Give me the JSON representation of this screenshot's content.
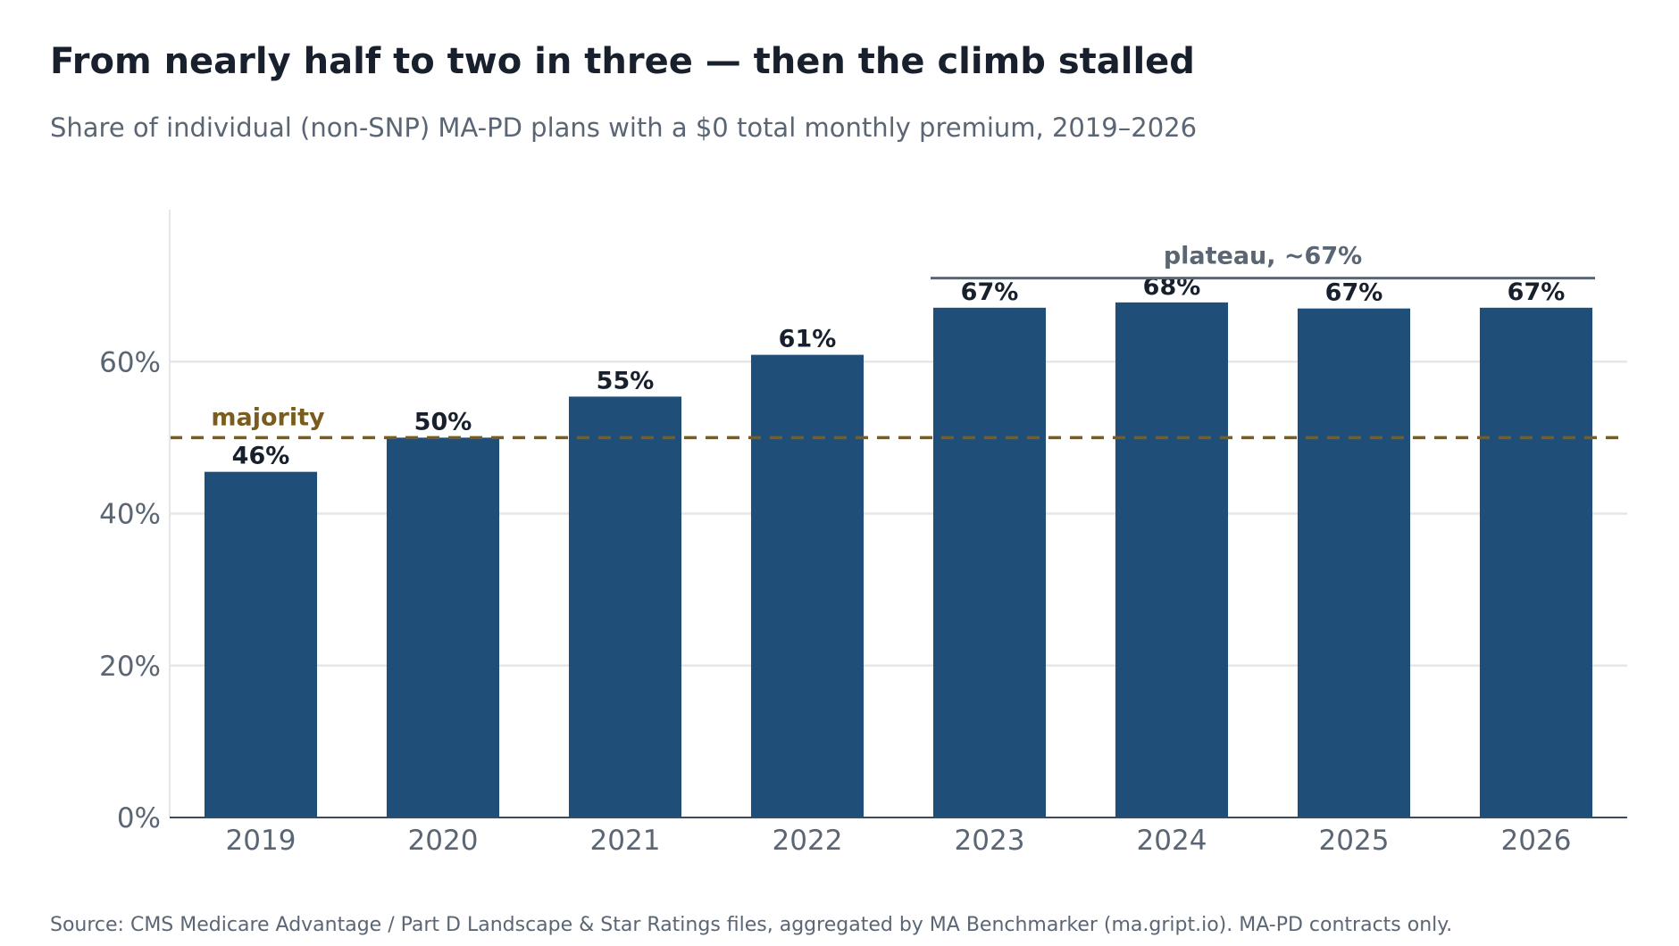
{
  "title": "From nearly half to two in three — then the climb stalled",
  "subtitle": "Share of individual (non-SNP) MA-PD plans with a $0 total monthly premium, 2019–2026",
  "source": "Source: CMS Medicare Advantage / Part D Landscape & Star Ratings files, aggregated by MA Benchmarker (ma.gript.io). MA-PD contracts only.",
  "colors": {
    "bar": "#1f4e79",
    "reference_line": "#7a5c1e",
    "plateau_bracket": "#5b6675",
    "text_dark": "#17202c",
    "text_muted": "#5b6675",
    "grid": "#e6e6e6",
    "axis": "#3d4a5a"
  },
  "chart_data": {
    "type": "bar",
    "title": "From nearly half to two in three — then the climb stalled",
    "subtitle": "Share of individual (non-SNP) MA-PD plans with a $0 total monthly premium, 2019–2026",
    "xlabel": "",
    "ylabel": "",
    "categories": [
      "2019",
      "2020",
      "2021",
      "2022",
      "2023",
      "2024",
      "2025",
      "2026"
    ],
    "values": [
      45.5,
      50.0,
      55.4,
      60.9,
      67.1,
      67.8,
      67.0,
      67.1
    ],
    "data_labels": [
      "46%",
      "50%",
      "55%",
      "61%",
      "67%",
      "68%",
      "67%",
      "67%"
    ],
    "ylim": [
      0,
      80
    ],
    "yticks": [
      0,
      20,
      40,
      60
    ],
    "ytick_labels": [
      "0%",
      "20%",
      "40%",
      "60%"
    ],
    "grid": "horizontal",
    "legend": "none",
    "annotations": {
      "reference_line": {
        "y": 50,
        "label": "majority",
        "style": "dashed"
      },
      "plateau": {
        "label": "plateau, ~67%",
        "y": 71,
        "from_category": "2023",
        "to_category": "2026"
      }
    }
  }
}
